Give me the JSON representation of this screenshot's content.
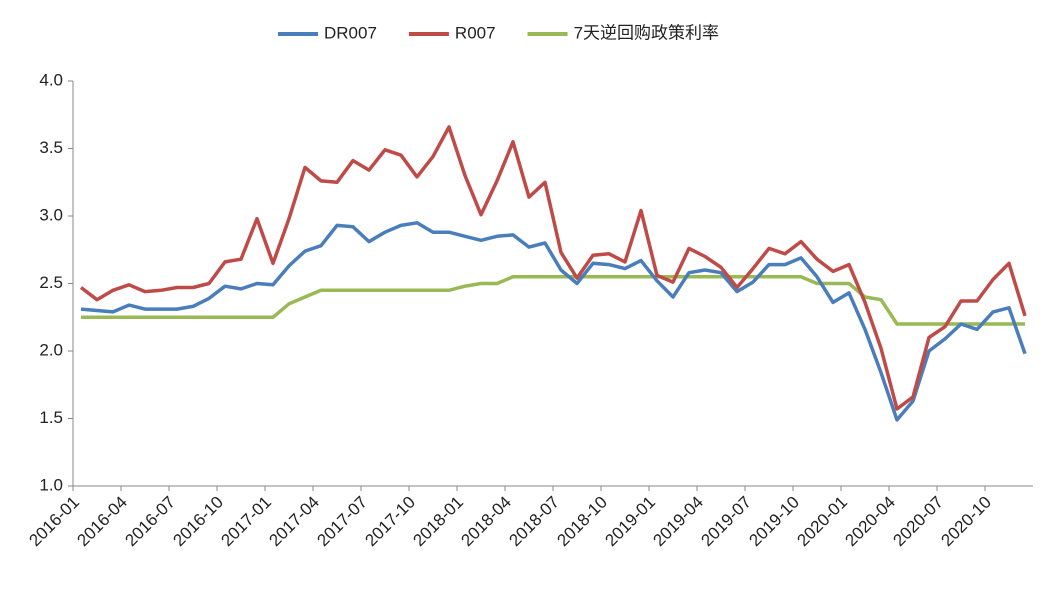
{
  "chart_data": {
    "type": "line",
    "categories": [
      "2016-01",
      null,
      null,
      "2016-04",
      null,
      null,
      "2016-07",
      null,
      null,
      "2016-10",
      null,
      null,
      "2017-01",
      null,
      null,
      "2017-04",
      null,
      null,
      "2017-07",
      null,
      null,
      "2017-10",
      null,
      null,
      "2018-01",
      null,
      null,
      "2018-04",
      null,
      null,
      "2018-07",
      null,
      null,
      "2018-10",
      null,
      null,
      "2019-01",
      null,
      null,
      "2019-04",
      null,
      null,
      "2019-07",
      null,
      null,
      "2019-10",
      null,
      null,
      "2020-01",
      null,
      null,
      "2020-04",
      null,
      null,
      "2020-07",
      null,
      null,
      "2020-10",
      null,
      null
    ],
    "series": [
      {
        "name": "DR007",
        "color": "#4a7ebb",
        "values": [
          2.31,
          2.3,
          2.29,
          2.34,
          2.31,
          2.31,
          2.31,
          2.33,
          2.39,
          2.48,
          2.46,
          2.5,
          2.49,
          2.63,
          2.74,
          2.78,
          2.93,
          2.92,
          2.81,
          2.88,
          2.93,
          2.95,
          2.88,
          2.88,
          2.85,
          2.82,
          2.85,
          2.86,
          2.77,
          2.8,
          2.6,
          2.5,
          2.65,
          2.64,
          2.61,
          2.67,
          2.52,
          2.4,
          2.58,
          2.6,
          2.58,
          2.44,
          2.51,
          2.64,
          2.64,
          2.69,
          2.55,
          2.36,
          2.43,
          2.16,
          1.84,
          1.49,
          1.63,
          2.0,
          2.09,
          2.2,
          2.16,
          2.29,
          2.32,
          1.98
        ]
      },
      {
        "name": "R007",
        "color": "#be4b48",
        "values": [
          2.47,
          2.38,
          2.45,
          2.49,
          2.44,
          2.45,
          2.47,
          2.47,
          2.5,
          2.66,
          2.68,
          2.98,
          2.65,
          2.98,
          3.36,
          3.26,
          3.25,
          3.41,
          3.34,
          3.49,
          3.45,
          3.29,
          3.44,
          3.66,
          3.3,
          3.01,
          3.26,
          3.55,
          3.14,
          3.25,
          2.73,
          2.54,
          2.71,
          2.72,
          2.66,
          3.04,
          2.56,
          2.51,
          2.76,
          2.7,
          2.62,
          2.47,
          2.61,
          2.76,
          2.72,
          2.81,
          2.68,
          2.59,
          2.64,
          2.36,
          2.02,
          1.57,
          1.66,
          2.1,
          2.18,
          2.37,
          2.37,
          2.53,
          2.65,
          2.26
        ]
      },
      {
        "name": "7天逆回购政策利率",
        "color": "#98b954",
        "values": [
          2.25,
          2.25,
          2.25,
          2.25,
          2.25,
          2.25,
          2.25,
          2.25,
          2.25,
          2.25,
          2.25,
          2.25,
          2.25,
          2.35,
          2.4,
          2.45,
          2.45,
          2.45,
          2.45,
          2.45,
          2.45,
          2.45,
          2.45,
          2.45,
          2.48,
          2.5,
          2.5,
          2.55,
          2.55,
          2.55,
          2.55,
          2.55,
          2.55,
          2.55,
          2.55,
          2.55,
          2.55,
          2.55,
          2.55,
          2.55,
          2.55,
          2.55,
          2.55,
          2.55,
          2.55,
          2.55,
          2.5,
          2.5,
          2.5,
          2.4,
          2.38,
          2.2,
          2.2,
          2.2,
          2.2,
          2.2,
          2.2,
          2.2,
          2.2,
          2.2
        ]
      }
    ],
    "ylim": [
      1,
      4
    ],
    "yticks": [
      {
        "value": 1,
        "label": "1.0"
      },
      1.5,
      {
        "value": 2,
        "label": "2.0"
      },
      2.5,
      {
        "value": 3,
        "label": "3.0"
      },
      3.5,
      {
        "value": 4,
        "label": "4.0"
      }
    ],
    "legend": "top"
  }
}
